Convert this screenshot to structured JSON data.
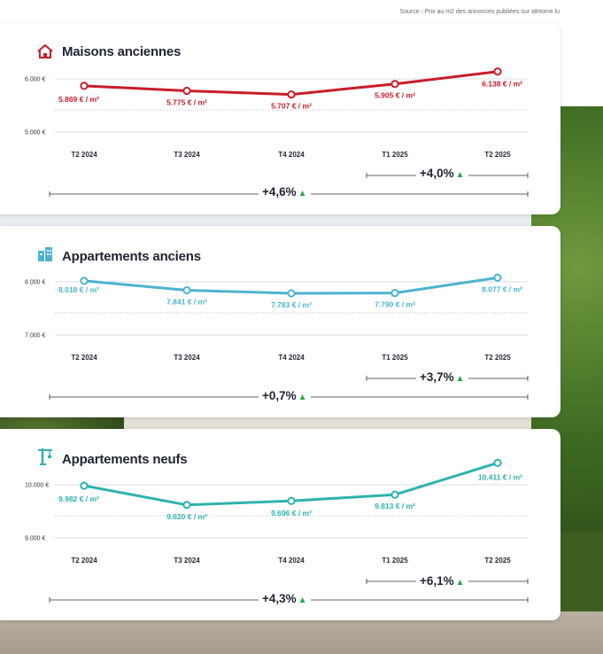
{
  "source": "Source : Prix au m2 des annonces publiées sur atHome.lu",
  "chart_data": [
    {
      "type": "line",
      "title": "Maisons anciennes",
      "icon": "house-icon",
      "color": "#c81d2a",
      "categories": [
        "T2 2024",
        "T3 2024",
        "T4 2024",
        "T1 2025",
        "T2 2025"
      ],
      "values": [
        5869,
        5775,
        5707,
        5905,
        6138
      ],
      "value_labels": [
        "5.869 € / m²",
        "5.775 € / m²",
        "5.707 € / m²",
        "5.905 € / m²",
        "6.138 € / m²"
      ],
      "y_ticks": [
        "6.000 €",
        "5.000 €"
      ],
      "y_tick_values": [
        6000,
        5000
      ],
      "change_year": "+4,6%",
      "change_quarter": "+4,0%"
    },
    {
      "type": "line",
      "title": "Appartements anciens",
      "icon": "building-icon",
      "color": "#4db3cf",
      "categories": [
        "T2 2024",
        "T3 2024",
        "T4 2024",
        "T1 2025",
        "T2 2025"
      ],
      "values": [
        8018,
        7841,
        7783,
        7790,
        8077
      ],
      "value_labels": [
        "8.018 € / m²",
        "7.841 € / m²",
        "7.783 € / m²",
        "7.790 € / m²",
        "8.077 € / m²"
      ],
      "y_ticks": [
        "8.000 €",
        "7.000 €"
      ],
      "y_tick_values": [
        8000,
        7000
      ],
      "change_year": "+0,7%",
      "change_quarter": "+3,7%"
    },
    {
      "type": "line",
      "title": "Appartements neufs",
      "icon": "crane-icon",
      "color": "#2eb3ad",
      "categories": [
        "T2 2024",
        "T3 2024",
        "T4 2024",
        "T1 2025",
        "T2 2025"
      ],
      "values": [
        9982,
        9620,
        9696,
        9813,
        10411
      ],
      "value_labels": [
        "9.982 € / m²",
        "9.620 € / m²",
        "9.696 € / m²",
        "9.813 € / m²",
        "10.411 € / m²"
      ],
      "y_ticks": [
        "10.000 €",
        "9.000 €"
      ],
      "y_tick_values": [
        10000,
        9000
      ],
      "change_year": "+4,3%",
      "change_quarter": "+6,1%"
    }
  ]
}
